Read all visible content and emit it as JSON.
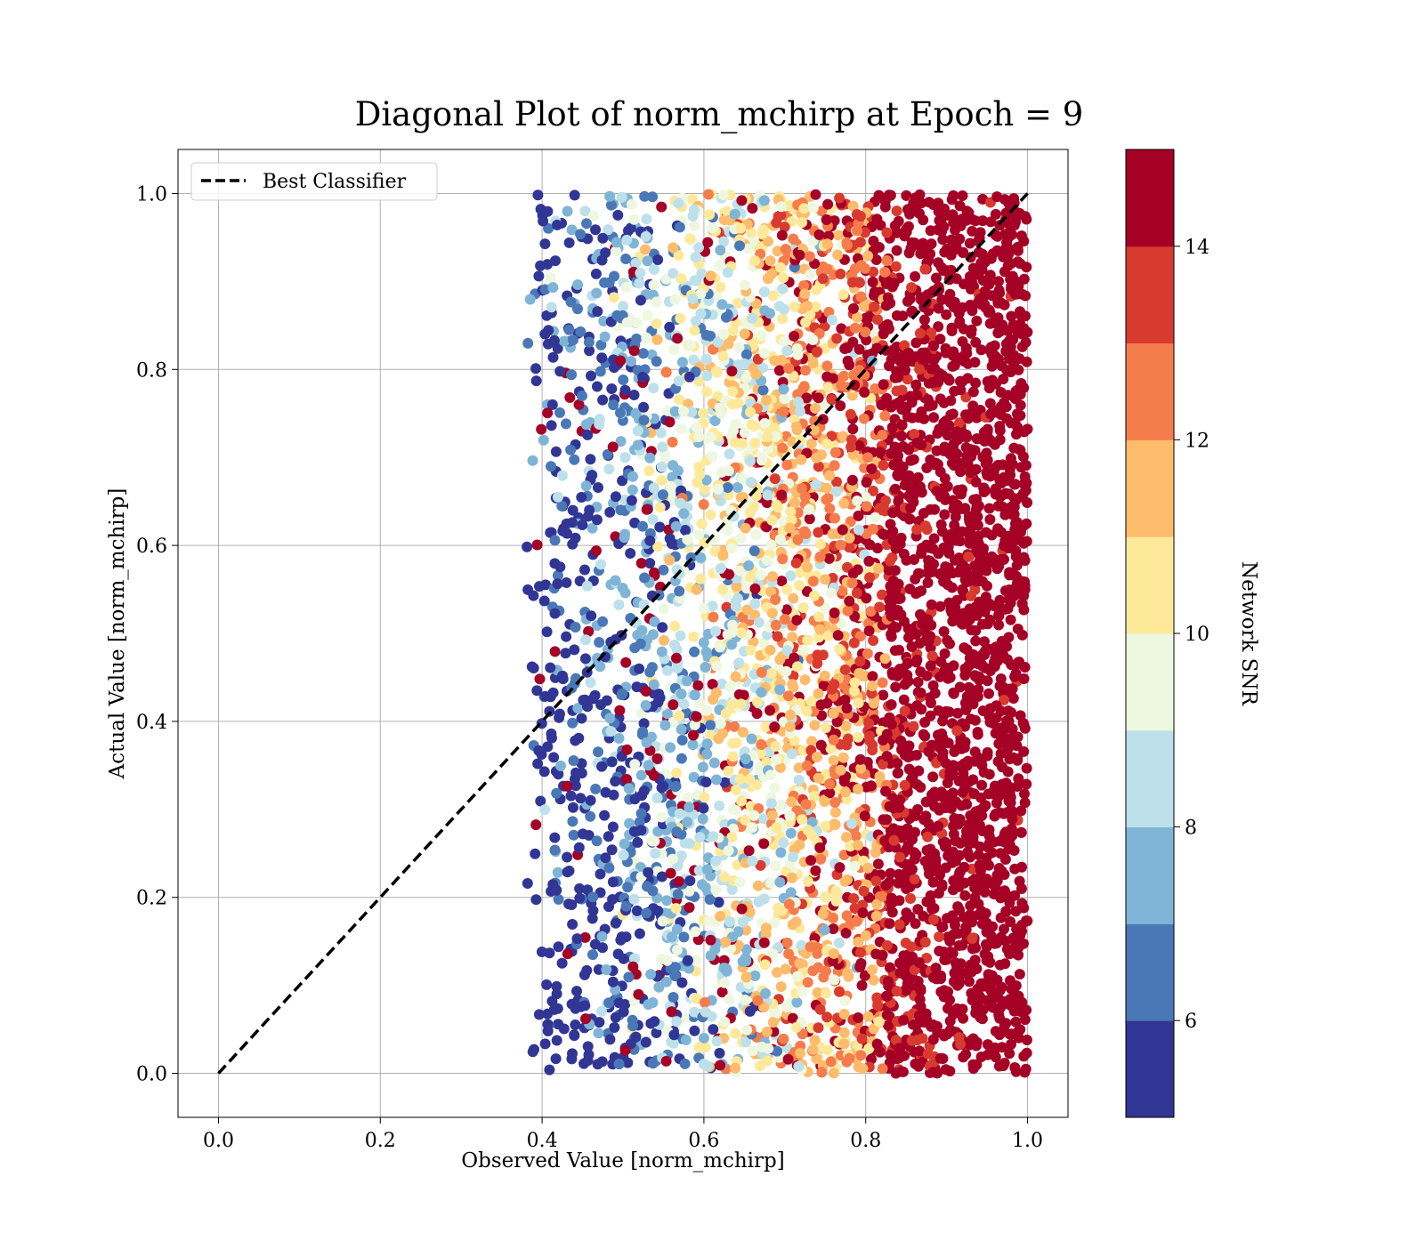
{
  "chart_data": {
    "type": "scatter",
    "title": "Diagonal Plot of norm_mchirp at Epoch = 9",
    "xlabel": "Observed Value [norm_mchirp]",
    "ylabel": "Actual Value [norm_mchirp]",
    "xlim": [
      -0.05,
      1.05
    ],
    "ylim": [
      -0.05,
      1.05
    ],
    "x_ticks": [
      0.0,
      0.2,
      0.4,
      0.6,
      0.8,
      1.0
    ],
    "x_tick_labels": [
      "0.0",
      "0.2",
      "0.4",
      "0.6",
      "0.8",
      "1.0"
    ],
    "y_ticks": [
      0.0,
      0.2,
      0.4,
      0.6,
      0.8,
      1.0
    ],
    "y_tick_labels": [
      "0.0",
      "0.2",
      "0.4",
      "0.6",
      "0.8",
      "1.0"
    ],
    "grid": true,
    "legend": {
      "placement": "upper-left",
      "entries": [
        {
          "label": "Best Classifier",
          "style": "dashed",
          "color": "#000000"
        }
      ]
    },
    "reference_line": {
      "label": "Best Classifier",
      "x": [
        0.0,
        1.0
      ],
      "y": [
        0.0,
        1.0
      ]
    },
    "scatter_region": {
      "x_range": [
        0.38,
        1.0
      ],
      "y_range": [
        0.0,
        1.0
      ],
      "description_of_trend": "color value increases with x"
    },
    "colorbar": {
      "label": "Network SNR",
      "range": [
        5,
        15
      ],
      "levels": [
        5,
        6,
        7,
        8,
        9,
        10,
        11,
        12,
        13,
        14,
        15
      ],
      "ticks": [
        6,
        8,
        10,
        12,
        14
      ],
      "tick_labels": [
        "6",
        "8",
        "10",
        "12",
        "14"
      ],
      "colors": [
        "#313695",
        "#4a78b6",
        "#7fb4d6",
        "#bde0eb",
        "#eef7e0",
        "#fee99a",
        "#fdbb6c",
        "#f57d4c",
        "#d83a2f",
        "#a50026"
      ]
    }
  }
}
